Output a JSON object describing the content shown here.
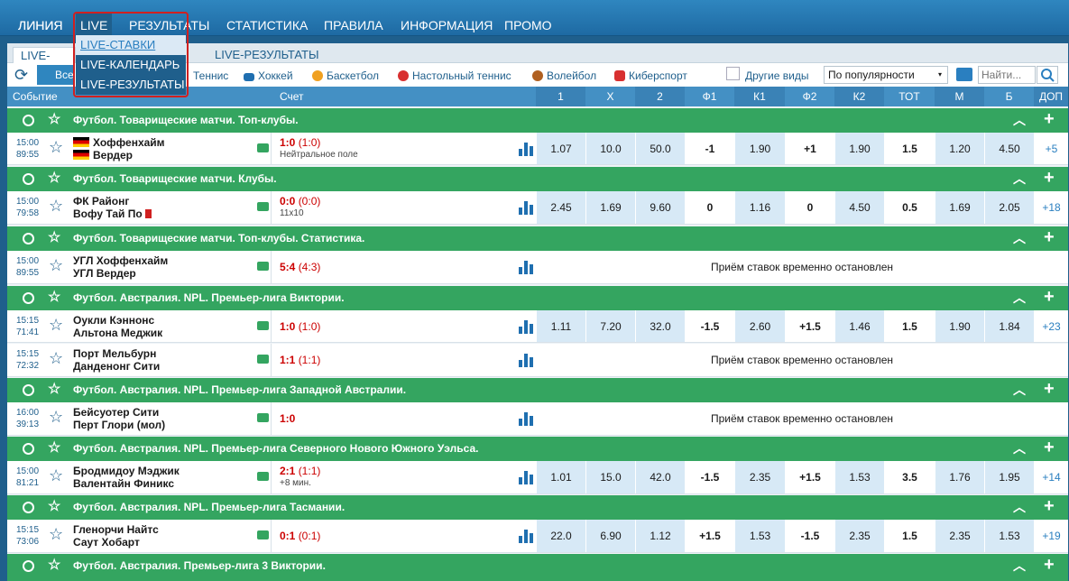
{
  "nav": {
    "items": [
      "ЛИНИЯ",
      "LIVE",
      "РЕЗУЛЬТАТЫ",
      "СТАТИСТИКА",
      "ПРАВИЛА",
      "ИНФОРМАЦИЯ",
      "ПРОМО"
    ],
    "dropdown": [
      "LIVE-СТАВКИ",
      "LIVE-КАЛЕНДАРЬ",
      "LIVE-РЕЗУЛЬТАТЫ"
    ]
  },
  "tabs": {
    "t1": "LIVE-СТАВ",
    "t2": "LIVE-РЕЗУЛЬТАТЫ"
  },
  "sports": {
    "all": "Все",
    "items": [
      "Теннис",
      "Хоккей",
      "Баскетбол",
      "Настольный теннис",
      "Волейбол",
      "Киберспорт"
    ],
    "other": "Другие виды",
    "sort": "По популярности",
    "search_placeholder": "Найти..."
  },
  "header": {
    "event": "Событие",
    "score": "Счет",
    "cols": [
      "1",
      "X",
      "2",
      "Ф1",
      "К1",
      "Ф2",
      "К2",
      "ТОТ",
      "М",
      "Б",
      "ДОП"
    ]
  },
  "suspended_text": "Приём ставок временно остановлен",
  "leagues": [
    {
      "title": "Футбол. Товарищеские матчи. Топ-клубы."
    },
    {
      "title": "Футбол. Товарищеские матчи. Клубы."
    },
    {
      "title": "Футбол. Товарищеские матчи. Топ-клубы. Статистика."
    },
    {
      "title": "Футбол. Австралия. NPL. Премьер-лига Виктории."
    },
    {
      "title": "Футбол. Австралия. NPL. Премьер-лига Западной Австралии."
    },
    {
      "title": "Футбол. Австралия. NPL. Премьер-лига Северного Нового Южного Уэльса."
    },
    {
      "title": "Футбол. Австралия. NPL. Премьер-лига Тасмании."
    },
    {
      "title": "Футбол. Австралия. Премьер-лига 3 Виктории."
    }
  ],
  "matches": [
    {
      "start": "15:00",
      "clock": "89:55",
      "home": "Хоффенхайм",
      "away": "Вердер",
      "score": "1:0",
      "half": "(1:0)",
      "note": "Нейтральное поле",
      "odds": [
        "1.07",
        "10.0",
        "50.0",
        "-1",
        "1.90",
        "+1",
        "1.90",
        "1.5",
        "1.20",
        "4.50",
        "+5"
      ]
    },
    {
      "start": "15:00",
      "clock": "79:58",
      "home": "ФК Районг",
      "away": "Вофу Тай По",
      "score": "0:0",
      "half": "(0:0)",
      "note": "11x10",
      "odds": [
        "2.45",
        "1.69",
        "9.60",
        "0",
        "1.16",
        "0",
        "4.50",
        "0.5",
        "1.69",
        "2.05",
        "+18"
      ]
    },
    {
      "start": "15:00",
      "clock": "89:55",
      "home": "УГЛ Хоффенхайм",
      "away": "УГЛ Вердер",
      "score": "5:4",
      "half": "(4:3)",
      "note": ""
    },
    {
      "start": "15:15",
      "clock": "71:41",
      "home": "Оукли Кэннонс",
      "away": "Альтона Меджик",
      "score": "1:0",
      "half": "(1:0)",
      "note": "",
      "odds": [
        "1.11",
        "7.20",
        "32.0",
        "-1.5",
        "2.60",
        "+1.5",
        "1.46",
        "1.5",
        "1.90",
        "1.84",
        "+23"
      ]
    },
    {
      "start": "15:15",
      "clock": "72:32",
      "home": "Порт Мельбурн",
      "away": "Данденонг Сити",
      "score": "1:1",
      "half": "(1:1)",
      "note": ""
    },
    {
      "start": "16:00",
      "clock": "39:13",
      "home": "Бейсуотер Сити",
      "away": "Перт Глори (мол)",
      "score": "1:0",
      "half": "",
      "note": ""
    },
    {
      "start": "15:00",
      "clock": "81:21",
      "home": "Бродмидоу Мэджик",
      "away": "Валентайн Финикс",
      "score": "2:1",
      "half": "(1:1)",
      "note": "+8 мин.",
      "odds": [
        "1.01",
        "15.0",
        "42.0",
        "-1.5",
        "2.35",
        "+1.5",
        "1.53",
        "3.5",
        "1.76",
        "1.95",
        "+14"
      ]
    },
    {
      "start": "15:15",
      "clock": "73:06",
      "home": "Гленорчи Найтс",
      "away": "Саут Хобарт",
      "score": "0:1",
      "half": "(0:1)",
      "note": "",
      "odds": [
        "22.0",
        "6.90",
        "1.12",
        "+1.5",
        "1.53",
        "-1.5",
        "2.35",
        "1.5",
        "2.35",
        "1.53",
        "+19"
      ]
    }
  ],
  "colors": {
    "nav": "#2f86bf",
    "header": "#4490c4",
    "league": "#34a560",
    "odds_cell": "#d7e9f6",
    "score": "#cc0000"
  }
}
